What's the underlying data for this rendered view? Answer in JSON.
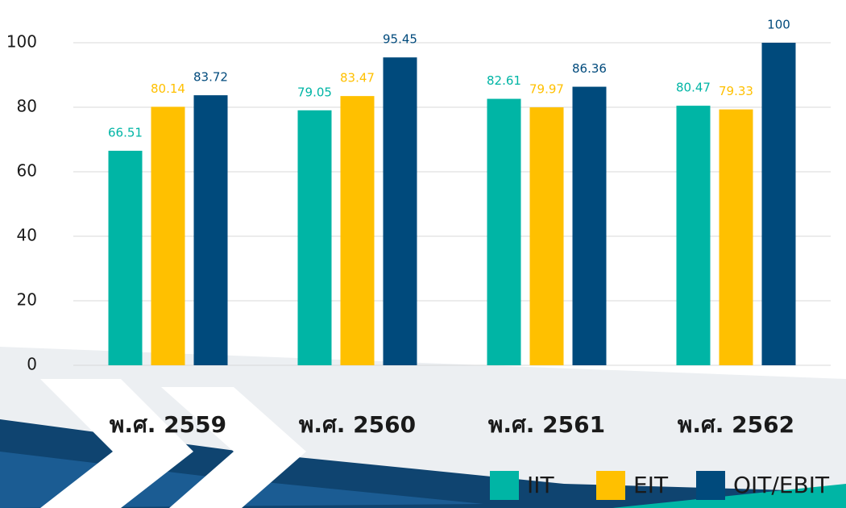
{
  "chart_data": {
    "type": "bar",
    "categories": [
      "พ.ศ. 2559",
      "พ.ศ. 2560",
      "พ.ศ. 2561",
      "พ.ศ. 2562"
    ],
    "series": [
      {
        "name": "IIT",
        "color": "#00b5a5",
        "values": [
          66.51,
          79.05,
          82.61,
          80.47
        ]
      },
      {
        "name": "EIT",
        "color": "#ffc000",
        "values": [
          80.14,
          83.47,
          79.97,
          79.33
        ]
      },
      {
        "name": "OIT/EBIT",
        "color": "#004a7c",
        "values": [
          83.72,
          95.45,
          86.36,
          100
        ]
      }
    ],
    "ylim": [
      0,
      100
    ],
    "yticks": [
      0,
      20,
      40,
      60,
      80,
      100
    ],
    "grid": true,
    "legend": "bottom-right"
  }
}
